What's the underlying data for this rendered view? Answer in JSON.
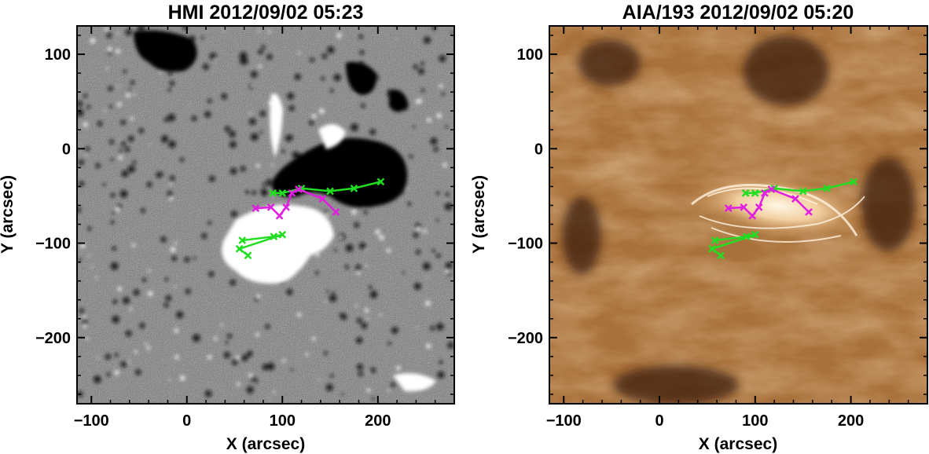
{
  "panels": [
    {
      "title": "HMI 2012/09/02 05:23",
      "xlabel": "X (arcsec)",
      "ylabel": "Y (arcsec)",
      "x_ticks": [
        "−100",
        "0",
        "100",
        "200"
      ],
      "y_ticks": [
        "100",
        "0",
        "−100",
        "−200"
      ]
    },
    {
      "title": "AIA/193 2012/09/02 05:20",
      "xlabel": "X (arcsec)",
      "ylabel": "Y (arcsec)",
      "x_ticks": [
        "−100",
        "0",
        "100",
        "200"
      ],
      "y_ticks": [
        "100",
        "0",
        "−100",
        "−200"
      ]
    }
  ],
  "axes": {
    "xlim": [
      -115,
      280
    ],
    "ylim": [
      -270,
      130
    ],
    "x_tick_values": [
      -100,
      0,
      100,
      200
    ],
    "y_tick_values": [
      100,
      0,
      -100,
      -200
    ]
  },
  "colors": {
    "green_track": "#22dd22",
    "magenta_track": "#e020e0",
    "hmi_gray": "#7f7f7f",
    "aia_base": "#a8703a",
    "aia_bright": "#fff1dc"
  },
  "tracks": {
    "green_upper": [
      [
        90,
        -47
      ],
      [
        100,
        -47
      ],
      [
        120,
        -42
      ],
      [
        150,
        -45
      ],
      [
        175,
        -42
      ],
      [
        203,
        -35
      ]
    ],
    "magenta": [
      [
        72,
        -63
      ],
      [
        88,
        -62
      ],
      [
        97,
        -71
      ],
      [
        104,
        -62
      ],
      [
        110,
        -47
      ],
      [
        117,
        -43
      ],
      [
        142,
        -53
      ],
      [
        156,
        -67
      ]
    ],
    "green_lower": [
      [
        58,
        -97
      ],
      [
        91,
        -93
      ],
      [
        100,
        -91
      ],
      [
        55,
        -106
      ],
      [
        64,
        -113
      ]
    ]
  }
}
